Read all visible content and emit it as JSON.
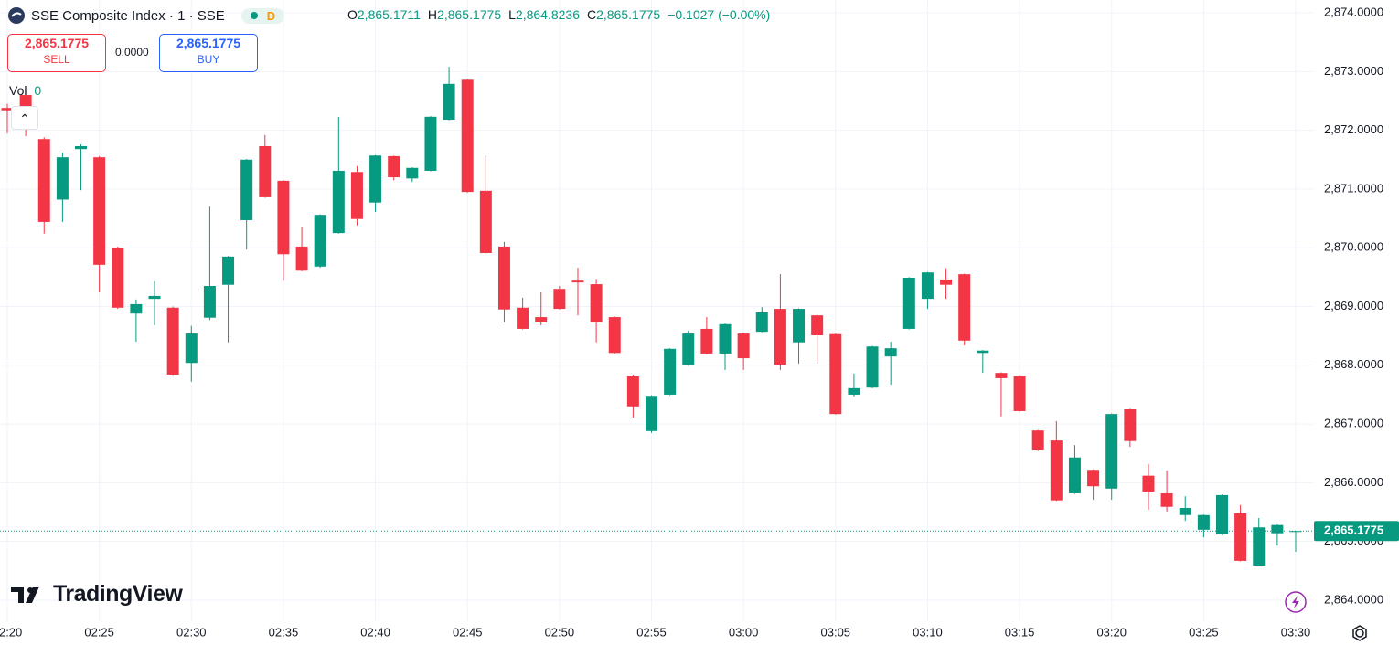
{
  "header": {
    "title": "SSE Composite Index · 1 · SSE",
    "badge": "D",
    "ohlc": [
      {
        "label": "O",
        "value": "2,865.1711"
      },
      {
        "label": "H",
        "value": "2,865.1775"
      },
      {
        "label": "L",
        "value": "2,864.8236"
      },
      {
        "label": "C",
        "value": "2,865.1775"
      }
    ],
    "change": "−0.1027 (−0.00%)"
  },
  "trade": {
    "sell_price": "2,865.1775",
    "sell": "SELL",
    "spread": "0.0000",
    "buy_price": "2,865.1775",
    "buy": "BUY"
  },
  "volume": {
    "label": "Vol",
    "value": "0"
  },
  "logo": "TradingView",
  "chart_data": {
    "type": "candlestick",
    "categories": [
      "02:20",
      null,
      null,
      null,
      null,
      "02:25",
      null,
      null,
      null,
      null,
      "02:30",
      null,
      null,
      null,
      null,
      "02:35",
      null,
      null,
      null,
      null,
      "02:40",
      null,
      null,
      null,
      null,
      "02:45",
      null,
      null,
      null,
      null,
      "02:50",
      null,
      null,
      null,
      null,
      "02:55",
      null,
      null,
      null,
      null,
      "03:00",
      null,
      null,
      null,
      null,
      "03:05",
      null,
      null,
      null,
      null,
      "03:10",
      null,
      null,
      null,
      null,
      "03:15",
      null,
      null,
      null,
      null,
      "03:20",
      null,
      null,
      null,
      null,
      "03:25",
      null,
      null,
      null,
      null,
      "03:30"
    ],
    "open": [
      2872.38,
      2872.6,
      2871.85,
      2870.82,
      2871.68,
      2871.54,
      2869.99,
      2868.88,
      2869.13,
      2868.98,
      2868.04,
      2868.81,
      2869.37,
      2870.47,
      2871.73,
      2871.14,
      2870.02,
      2869.68,
      2870.25,
      2871.29,
      2870.77,
      2871.56,
      2871.18,
      2871.31,
      2872.18,
      2872.86,
      2870.97,
      2870.02,
      2868.98,
      2868.82,
      2869.3,
      2869.44,
      2869.38,
      2868.82,
      2867.81,
      2866.88,
      2867.5,
      2868.0,
      2868.62,
      2868.2,
      2868.54,
      2868.57,
      2868.96,
      2868.39,
      2868.85,
      2868.53,
      2867.5,
      2867.62,
      2868.15,
      2868.62,
      2869.13,
      2869.46,
      2869.55,
      2868.21,
      2867.87,
      2867.81,
      2866.89,
      2866.72,
      2865.82,
      2866.22,
      2865.9,
      2867.25,
      2866.12,
      2865.82,
      2865.45,
      2865.2,
      2865.12,
      2865.48,
      2864.59,
      2865.14,
      2865.1711
    ],
    "high": [
      2872.45,
      2872.7,
      2871.88,
      2871.62,
      2871.76,
      2871.56,
      2870.02,
      2869.12,
      2869.43,
      2869.0,
      2868.67,
      2870.7,
      2869.86,
      2871.51,
      2871.92,
      2871.15,
      2870.36,
      2870.57,
      2872.23,
      2871.39,
      2871.58,
      2871.57,
      2871.37,
      2872.24,
      2873.08,
      2872.87,
      2871.57,
      2870.1,
      2869.15,
      2869.24,
      2869.35,
      2869.66,
      2869.47,
      2868.83,
      2867.84,
      2867.49,
      2868.29,
      2868.59,
      2868.82,
      2868.71,
      2868.55,
      2868.99,
      2869.55,
      2868.97,
      2868.86,
      2868.54,
      2867.86,
      2868.33,
      2868.4,
      2869.5,
      2869.59,
      2869.65,
      2869.56,
      2868.26,
      2867.88,
      2867.82,
      2866.9,
      2867.05,
      2866.64,
      2866.23,
      2867.18,
      2867.26,
      2866.32,
      2866.21,
      2865.77,
      2865.46,
      2865.8,
      2865.62,
      2865.4,
      2865.29,
      2865.1775
    ],
    "low": [
      2871.95,
      2871.9,
      2870.24,
      2870.44,
      2870.98,
      2869.24,
      2868.96,
      2868.4,
      2868.68,
      2867.82,
      2867.72,
      2868.77,
      2868.39,
      2869.97,
      2870.85,
      2869.44,
      2869.6,
      2869.66,
      2870.24,
      2870.38,
      2870.61,
      2871.15,
      2871.12,
      2871.3,
      2872.17,
      2870.94,
      2869.9,
      2868.73,
      2868.61,
      2868.68,
      2868.95,
      2868.85,
      2868.39,
      2868.2,
      2867.11,
      2866.85,
      2867.49,
      2867.99,
      2868.19,
      2867.92,
      2867.92,
      2868.56,
      2867.92,
      2868.03,
      2868.03,
      2867.16,
      2867.47,
      2867.61,
      2867.67,
      2868.61,
      2868.96,
      2869.13,
      2868.34,
      2867.87,
      2867.13,
      2867.21,
      2866.54,
      2865.69,
      2865.81,
      2865.71,
      2865.71,
      2866.61,
      2865.54,
      2865.51,
      2865.35,
      2865.07,
      2865.11,
      2864.66,
      2864.58,
      2864.93,
      2864.8236
    ],
    "close": [
      2872.34,
      2872.3,
      2870.44,
      2871.54,
      2871.73,
      2869.71,
      2868.98,
      2869.04,
      2869.18,
      2867.84,
      2868.54,
      2869.35,
      2869.85,
      2871.5,
      2870.86,
      2869.89,
      2869.61,
      2870.56,
      2871.31,
      2870.49,
      2871.57,
      2871.2,
      2871.36,
      2872.23,
      2872.79,
      2870.95,
      2869.91,
      2868.95,
      2868.62,
      2868.73,
      2868.96,
      2869.41,
      2868.73,
      2868.21,
      2867.3,
      2867.48,
      2868.28,
      2868.54,
      2868.2,
      2868.7,
      2868.12,
      2868.9,
      2868.01,
      2868.96,
      2868.51,
      2867.17,
      2867.61,
      2868.32,
      2868.29,
      2869.49,
      2869.58,
      2869.37,
      2868.42,
      2868.25,
      2867.78,
      2867.22,
      2866.55,
      2865.7,
      2866.43,
      2865.94,
      2867.17,
      2866.71,
      2865.85,
      2865.59,
      2865.57,
      2865.45,
      2865.79,
      2864.67,
      2865.24,
      2865.28,
      2865.1775
    ],
    "up_color": "#089981",
    "down_color": "#f23645",
    "ylim": [
      2863.642,
      2874.218
    ],
    "yticks": [
      {
        "value": 2864,
        "label": "2,864.0000"
      },
      {
        "value": 2865,
        "label": "2,865.0000"
      },
      {
        "value": 2866,
        "label": "2,866.0000"
      },
      {
        "value": 2867,
        "label": "2,867.0000"
      },
      {
        "value": 2868,
        "label": "2,868.0000"
      },
      {
        "value": 2869,
        "label": "2,869.0000"
      },
      {
        "value": 2870,
        "label": "2,870.0000"
      },
      {
        "value": 2871,
        "label": "2,871.0000"
      },
      {
        "value": 2872,
        "label": "2,872.0000"
      },
      {
        "value": 2873,
        "label": "2,873.0000"
      },
      {
        "value": 2874,
        "label": "2,874.0000"
      }
    ],
    "grid": true,
    "last_price": {
      "value": 2865.1775,
      "label": "2,865.1775"
    }
  }
}
